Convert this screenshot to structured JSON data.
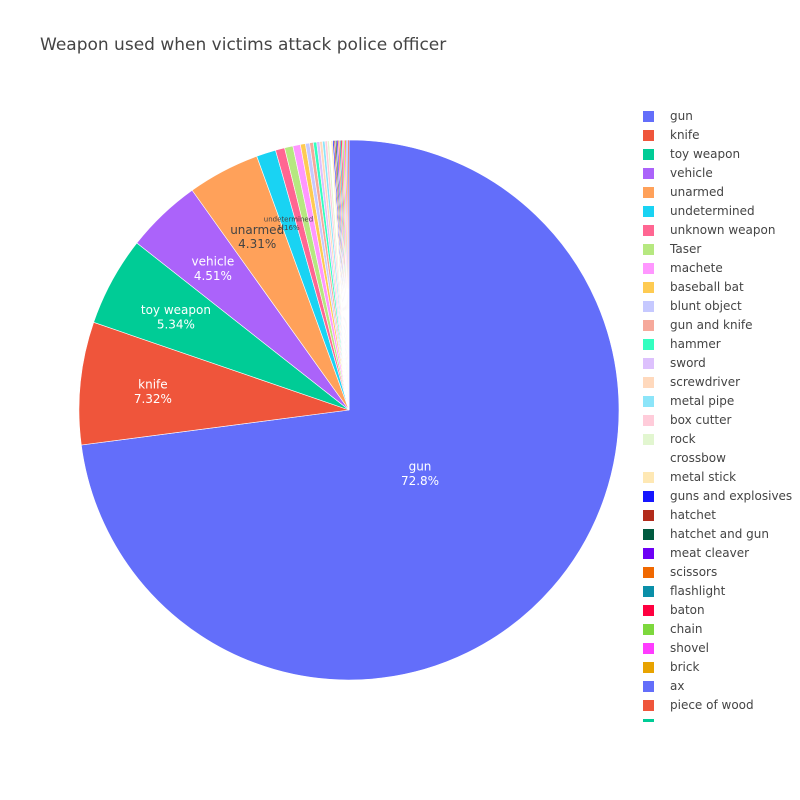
{
  "chart_data": {
    "type": "pie",
    "title": "Weapon used when victims attack police officer",
    "legend_placement": "right",
    "sort": "descending",
    "direction": "clockwise",
    "start_angle": "12 o'clock",
    "slices": [
      {
        "label": "gun",
        "value": 72.8,
        "text": "72.8%",
        "color": "#636efa"
      },
      {
        "label": "knife",
        "value": 7.32,
        "text": "7.32%",
        "color": "#EF553B"
      },
      {
        "label": "toy weapon",
        "value": 5.34,
        "text": "5.34%",
        "color": "#00cc96"
      },
      {
        "label": "vehicle",
        "value": 4.51,
        "text": "4.51%",
        "color": "#ab63fa"
      },
      {
        "label": "unarmed",
        "value": 4.31,
        "text": "4.31%",
        "color": "#FFA15A"
      },
      {
        "label": "undetermined",
        "value": 1.16,
        "text": "1.16%",
        "color": "#19d3f3"
      },
      {
        "label": "unknown weapon",
        "value": 0.55,
        "color": "#FF6692"
      },
      {
        "label": "Taser",
        "value": 0.5,
        "color": "#B6E880"
      },
      {
        "label": "machete",
        "value": 0.45,
        "color": "#FF97FF"
      },
      {
        "label": "baseball bat",
        "value": 0.3,
        "color": "#FECB52"
      },
      {
        "label": "blunt object",
        "value": 0.25,
        "color": "#c6c9ff"
      },
      {
        "label": "gun and knife",
        "value": 0.22,
        "color": "#f6a99b"
      },
      {
        "label": "hammer",
        "value": 0.2,
        "color": "#33ffc0"
      },
      {
        "label": "sword",
        "value": 0.18,
        "color": "#ddc1fd"
      },
      {
        "label": "screwdriver",
        "value": 0.16,
        "color": "#ffd9bd"
      },
      {
        "label": "metal pipe",
        "value": 0.15,
        "color": "#8ce5f9"
      },
      {
        "label": "box cutter",
        "value": 0.14,
        "color": "#ffccda"
      },
      {
        "label": "rock",
        "value": 0.12,
        "color": "#e2f6d0"
      },
      {
        "label": "crossbow",
        "value": 0.1,
        "color": "#ffffff"
      },
      {
        "label": "metal stick",
        "value": 0.1,
        "color": "#fee8b4"
      },
      {
        "label": "guns and explosives",
        "value": 0.08,
        "color": "#1616ff"
      },
      {
        "label": "hatchet",
        "value": 0.08,
        "color": "#b22b1b"
      },
      {
        "label": "hatchet and gun",
        "value": 0.08,
        "color": "#005a3f"
      },
      {
        "label": "meat cleaver",
        "value": 0.08,
        "color": "#6d00f5"
      },
      {
        "label": "scissors",
        "value": 0.08,
        "color": "#f06800"
      },
      {
        "label": "flashlight",
        "value": 0.08,
        "color": "#0a8fa8"
      },
      {
        "label": "baton",
        "value": 0.08,
        "color": "#ff0040"
      },
      {
        "label": "chain",
        "value": 0.08,
        "color": "#7dd83d"
      },
      {
        "label": "shovel",
        "value": 0.08,
        "color": "#ff3cff"
      },
      {
        "label": "brick",
        "value": 0.08,
        "color": "#e8a300"
      },
      {
        "label": "ax",
        "value": 0.08,
        "color": "#636efa"
      },
      {
        "label": "piece of wood",
        "value": 0.08,
        "color": "#EF553B"
      }
    ],
    "legend_partial_color": "#00cc96"
  }
}
